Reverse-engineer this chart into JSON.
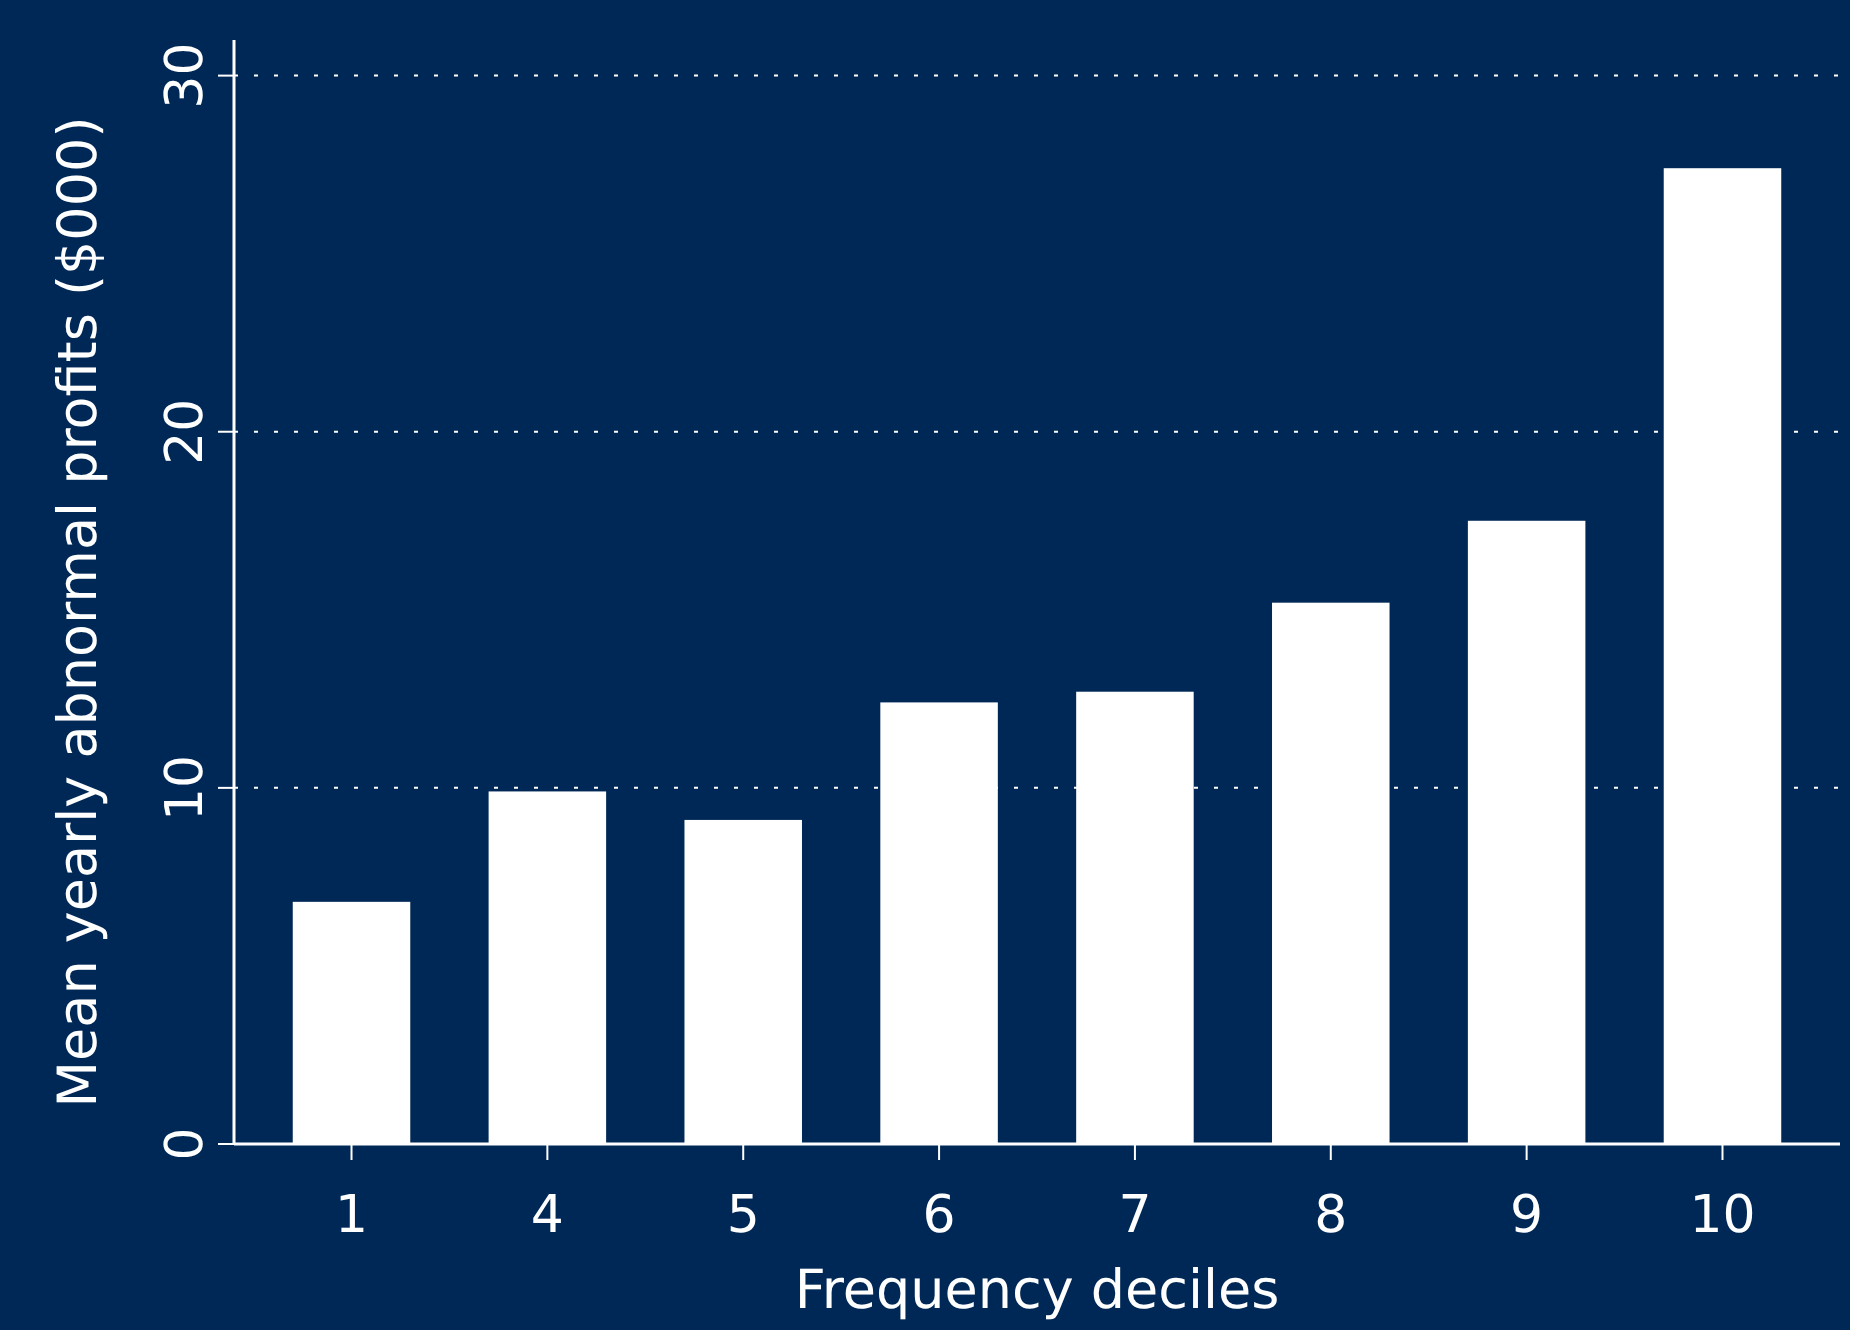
{
  "chart_data": {
    "type": "bar",
    "xlabel": "Frequency deciles",
    "ylabel": "Mean yearly abnormal profits ($000)",
    "categories": [
      "1",
      "4",
      "5",
      "6",
      "7",
      "8",
      "9",
      "10"
    ],
    "values": [
      6.8,
      9.9,
      9.1,
      12.4,
      12.7,
      15.2,
      17.5,
      27.4
    ],
    "color": "#ffffff",
    "ylim": [
      0,
      31
    ],
    "yticks": [
      0,
      10,
      20,
      30
    ],
    "grid": "y"
  }
}
